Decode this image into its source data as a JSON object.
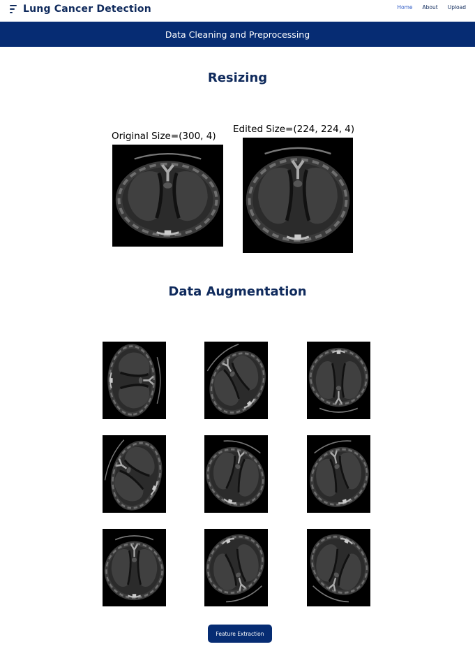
{
  "navbar": {
    "brand_icon": "menu-lines-icon",
    "brand_title": "Lung Cancer Detection",
    "links": [
      {
        "label": "Home",
        "active": true
      },
      {
        "label": "About",
        "active": false
      },
      {
        "label": "Upload",
        "active": false
      }
    ]
  },
  "banner": {
    "title": "Data Cleaning and Preprocessing"
  },
  "resizing": {
    "title": "Resizing",
    "original_caption": "Original Size=(300, 4)",
    "edited_caption": "Edited Size=(224, 224, 4)"
  },
  "augmentation": {
    "title": "Data Augmentation",
    "image_count": 9
  },
  "actions": {
    "feature_extraction_label": "Feature Extraction"
  },
  "colors": {
    "primary": "#062c73",
    "link_active": "#3560c8",
    "heading": "#0f2a5c"
  }
}
